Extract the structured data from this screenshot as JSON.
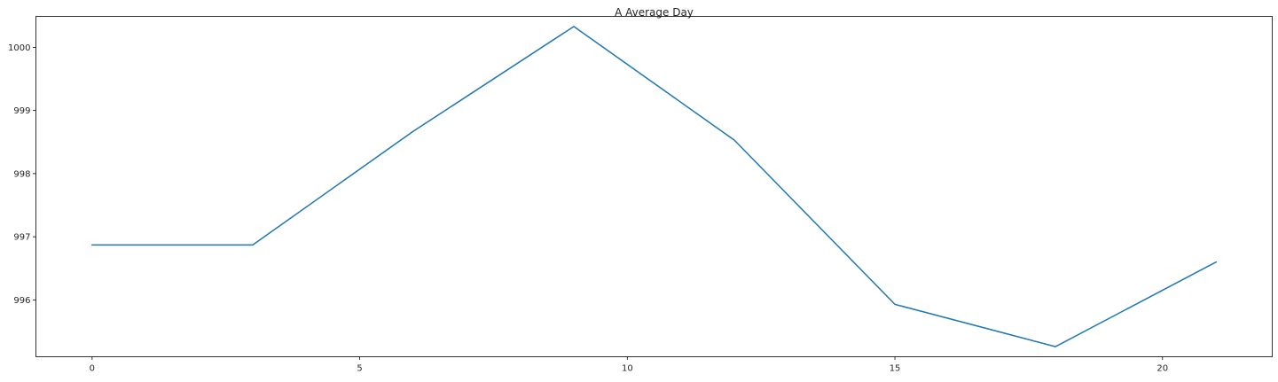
{
  "chart_data": {
    "type": "line",
    "title": "A Average Day",
    "xlabel": "",
    "ylabel": "",
    "x": [
      0,
      3,
      6,
      9,
      12,
      15,
      18,
      21
    ],
    "series": [
      {
        "values": [
          996.87,
          996.87,
          998.67,
          1000.33,
          998.53,
          995.93,
          995.26,
          996.6
        ],
        "color": "#1f77b4"
      }
    ],
    "xlim": [
      -1.05,
      22.05
    ],
    "ylim": [
      995.1,
      1000.49
    ],
    "xticks": [
      0,
      5,
      10,
      15,
      20
    ],
    "yticks": [
      996,
      997,
      998,
      999,
      1000
    ],
    "grid": false,
    "legend": "none"
  }
}
